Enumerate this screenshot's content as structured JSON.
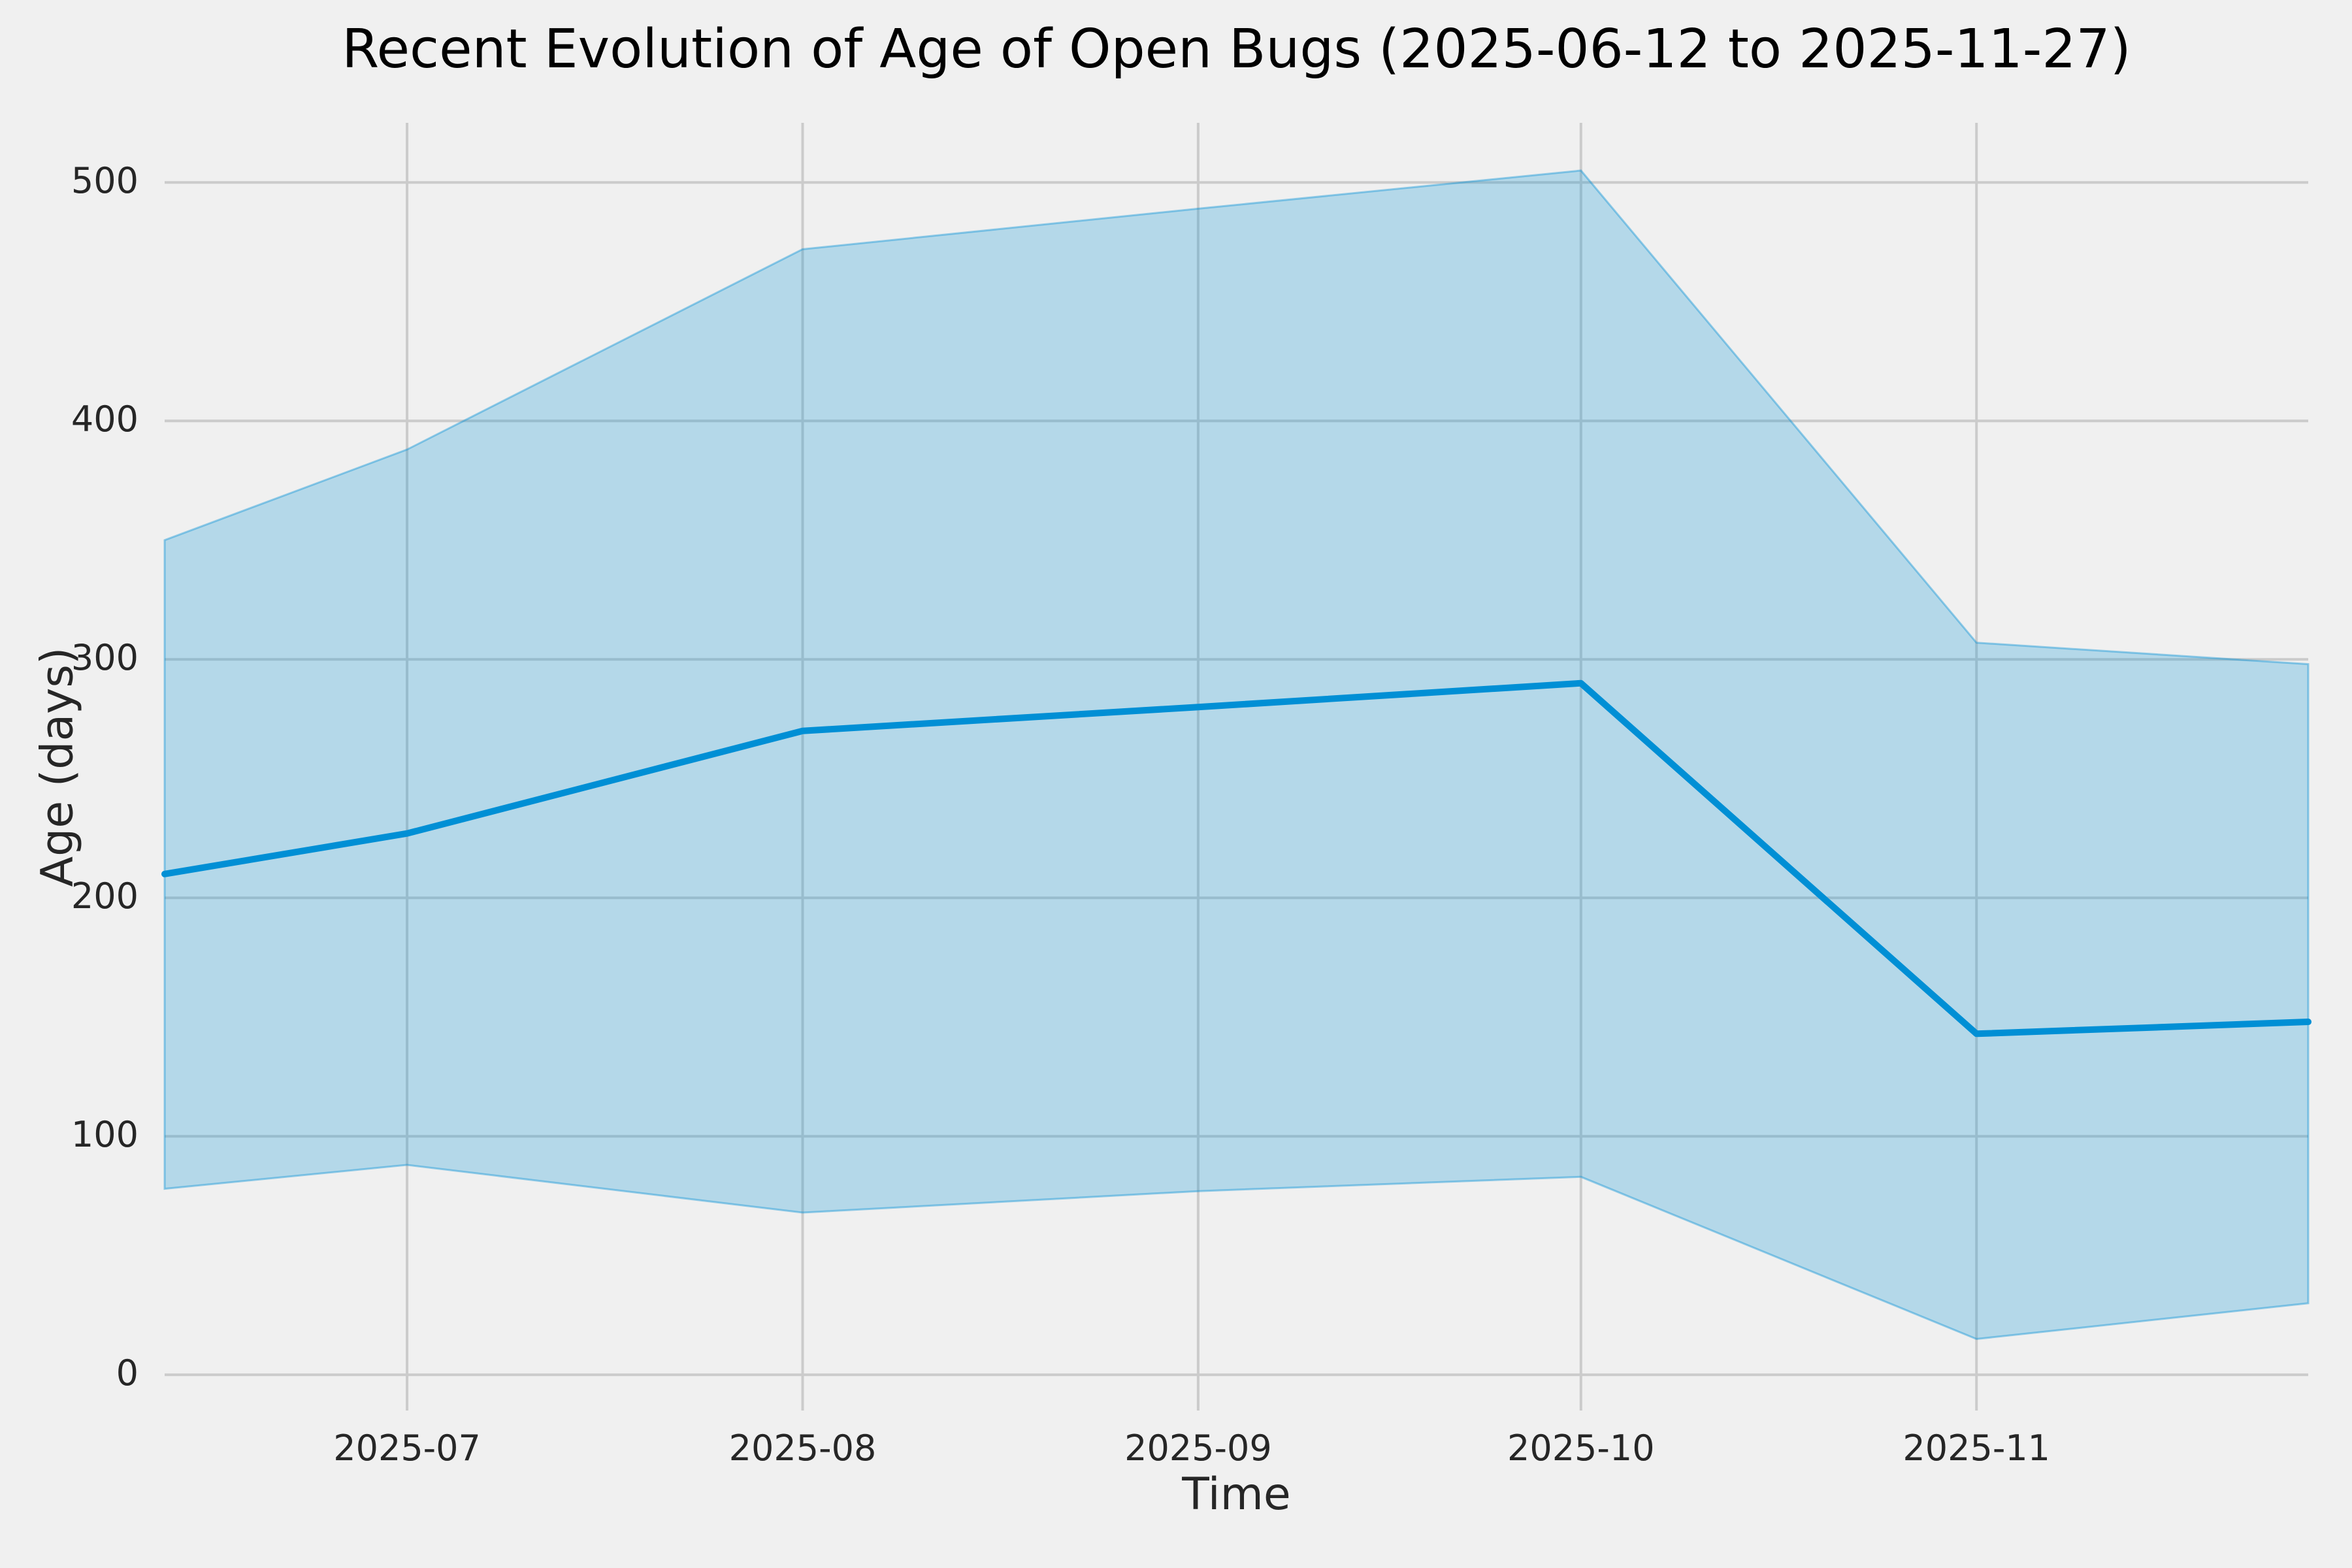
{
  "chart_data": {
    "type": "line",
    "title": "Recent Evolution of Age of Open Bugs (2025-06-12 to 2025-11-27)",
    "xlabel": "Time",
    "ylabel": "Age (days)",
    "x": [
      "2025-06-12",
      "2025-07-01",
      "2025-08-01",
      "2025-09-01",
      "2025-10-01",
      "2025-11-01",
      "2025-11-27"
    ],
    "x_days": [
      0,
      19,
      50,
      81,
      111,
      142,
      168
    ],
    "series": [
      {
        "name": "age-median-line",
        "values": [
          210,
          227,
          270,
          280,
          290,
          143,
          148
        ]
      },
      {
        "name": "band-upper",
        "values": [
          350,
          388,
          472,
          489,
          505,
          307,
          298
        ]
      },
      {
        "name": "band-lower",
        "values": [
          78,
          88,
          68,
          77,
          83,
          15,
          30
        ]
      }
    ],
    "x_ticks": [
      {
        "label": "2025-07",
        "day": 19
      },
      {
        "label": "2025-08",
        "day": 50
      },
      {
        "label": "2025-09",
        "day": 81
      },
      {
        "label": "2025-10",
        "day": 111
      },
      {
        "label": "2025-11",
        "day": 142
      }
    ],
    "y_ticks": [
      {
        "label": "0",
        "value": 0
      },
      {
        "label": "100",
        "value": 100
      },
      {
        "label": "200",
        "value": 200
      },
      {
        "label": "300",
        "value": 300
      },
      {
        "label": "400",
        "value": 400
      },
      {
        "label": "500",
        "value": 500
      }
    ],
    "ylim": [
      -15,
      525
    ],
    "xlim_days": [
      0,
      168
    ],
    "grid": true,
    "legend_position": "none",
    "colors": {
      "background": "#f0f0f0",
      "grid": "#cbcbcb",
      "line": "#008fd5",
      "band_fill": "#008fd5",
      "band_fill_opacity": "0.25",
      "band_edge": "#008fd5",
      "band_edge_opacity": "0.4",
      "text": "#262626",
      "title_text": "#000000"
    }
  }
}
